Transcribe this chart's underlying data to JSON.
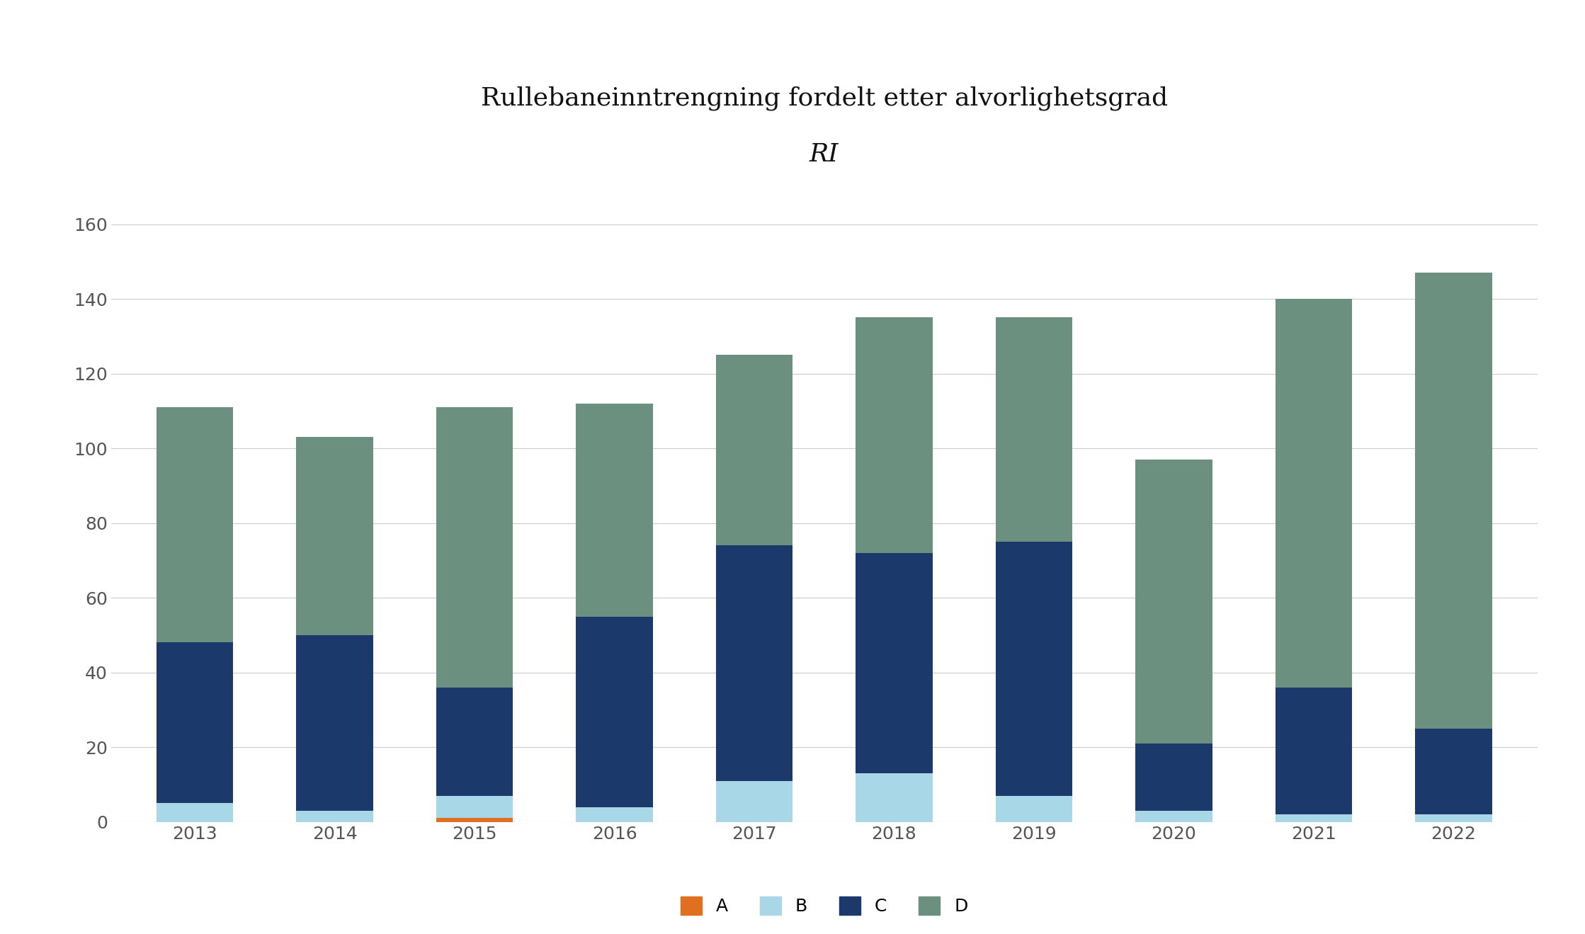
{
  "years": [
    "2013",
    "2014",
    "2015",
    "2016",
    "2017",
    "2018",
    "2019",
    "2020",
    "2021",
    "2022"
  ],
  "A": [
    0,
    0,
    1,
    0,
    0,
    0,
    0,
    0,
    0,
    0
  ],
  "B": [
    5,
    3,
    6,
    4,
    11,
    13,
    7,
    3,
    2,
    2
  ],
  "C": [
    43,
    47,
    29,
    51,
    63,
    59,
    68,
    18,
    34,
    23
  ],
  "D": [
    63,
    53,
    75,
    57,
    51,
    63,
    60,
    76,
    104,
    122
  ],
  "color_A": "#E07020",
  "color_B": "#A8D8E8",
  "color_C": "#1B3A6B",
  "color_D": "#6B9080",
  "title_line1": "Rullebaneinntrengning fordelt etter alvorlighetsgrad",
  "title_line2": "RI",
  "background_color": "#FFFFFF",
  "bar_width": 0.55,
  "ylim": [
    0,
    165
  ],
  "yticks": [
    0,
    20,
    40,
    60,
    80,
    100,
    120,
    140,
    160
  ],
  "legend_labels": [
    "A",
    "B",
    "C",
    "D"
  ],
  "grid_color": "#CCCCCC",
  "title_fontsize": 26,
  "subtitle_fontsize": 26,
  "tick_fontsize": 18,
  "legend_fontsize": 18
}
